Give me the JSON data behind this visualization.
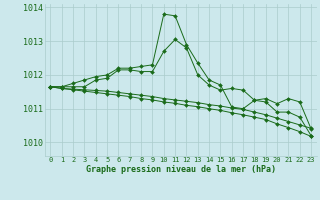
{
  "title": "Graphe pression niveau de la mer (hPa)",
  "background_color": "#cce8ec",
  "grid_color": "#aacccc",
  "line_color": "#1a6b1a",
  "x_ticks": [
    0,
    1,
    2,
    3,
    4,
    5,
    6,
    7,
    8,
    9,
    10,
    11,
    12,
    13,
    14,
    15,
    16,
    17,
    18,
    19,
    20,
    21,
    22,
    23
  ],
  "ylim": [
    1009.6,
    1014.1
  ],
  "yticks": [
    1010,
    1011,
    1012,
    1013,
    1014
  ],
  "series": [
    [
      1011.65,
      1011.65,
      1011.75,
      1011.85,
      1011.95,
      1012.0,
      1012.2,
      1012.2,
      1012.25,
      1012.3,
      1013.8,
      1013.75,
      1012.9,
      1012.35,
      1011.85,
      1011.7,
      1011.05,
      1011.0,
      1011.25,
      1011.2,
      1010.9,
      1010.9,
      1010.75,
      1010.2
    ],
    [
      1011.65,
      1011.65,
      1011.65,
      1011.65,
      1011.85,
      1011.9,
      1012.15,
      1012.15,
      1012.1,
      1012.1,
      1012.7,
      1013.05,
      1012.8,
      1012.0,
      1011.7,
      1011.55,
      1011.6,
      1011.55,
      1011.25,
      1011.3,
      1011.15,
      1011.3,
      1011.2,
      1010.4
    ],
    [
      1011.65,
      1011.6,
      1011.58,
      1011.56,
      1011.54,
      1011.52,
      1011.48,
      1011.44,
      1011.4,
      1011.36,
      1011.3,
      1011.26,
      1011.22,
      1011.18,
      1011.12,
      1011.08,
      1011.02,
      1010.98,
      1010.9,
      1010.82,
      1010.72,
      1010.62,
      1010.52,
      1010.42
    ],
    [
      1011.65,
      1011.6,
      1011.56,
      1011.52,
      1011.48,
      1011.44,
      1011.4,
      1011.36,
      1011.3,
      1011.26,
      1011.2,
      1011.16,
      1011.1,
      1011.06,
      1011.0,
      1010.95,
      1010.88,
      1010.82,
      1010.75,
      1010.68,
      1010.55,
      1010.44,
      1010.32,
      1010.18
    ]
  ]
}
